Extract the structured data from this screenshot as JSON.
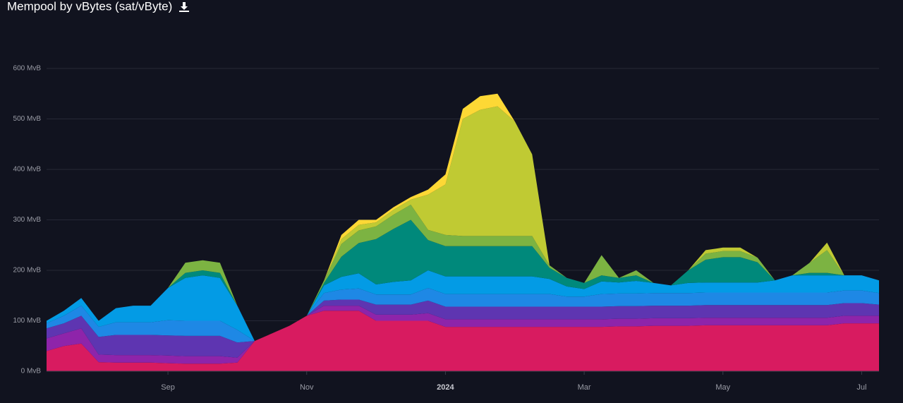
{
  "chart_data": {
    "type": "stacked-area",
    "title": "Mempool by vBytes (sat/vByte)",
    "categories": [
      null,
      null,
      null,
      null,
      null,
      null,
      null,
      "Sep",
      null,
      null,
      null,
      null,
      null,
      null,
      null,
      "Nov",
      null,
      null,
      null,
      null,
      null,
      null,
      null,
      "2024",
      null,
      null,
      null,
      null,
      null,
      null,
      null,
      "Mar",
      null,
      null,
      null,
      null,
      null,
      null,
      null,
      "May",
      null,
      null,
      null,
      null,
      null,
      null,
      null,
      "Jul",
      null
    ],
    "ylim": [
      0,
      600
    ],
    "yticks": [
      {
        "value": 0,
        "label": "0 MvB"
      },
      {
        "value": 100,
        "label": "100 MvB"
      },
      {
        "value": 200,
        "label": "200 MvB"
      },
      {
        "value": 300,
        "label": "300 MvB"
      },
      {
        "value": 400,
        "label": "400 MvB"
      },
      {
        "value": 500,
        "label": "500 MvB"
      },
      {
        "value": 600,
        "label": "600 MvB"
      }
    ],
    "grid": true,
    "series": [
      {
        "color": "#d81b60",
        "values": [
          40,
          50,
          55,
          18,
          17,
          17,
          17,
          16,
          15,
          15,
          15,
          17,
          60,
          75,
          90,
          110,
          120,
          120,
          120,
          100,
          100,
          100,
          100,
          88,
          88,
          88,
          88,
          88,
          88,
          88,
          88,
          88,
          88,
          89,
          89,
          90,
          90,
          90,
          91,
          91,
          91,
          91,
          91,
          91,
          91,
          91,
          95,
          95,
          95
        ]
      },
      {
        "color": "#8e24aa",
        "values": [
          25,
          25,
          30,
          15,
          15,
          15,
          15,
          15,
          15,
          15,
          15,
          10,
          0,
          0,
          0,
          0,
          10,
          10,
          10,
          12,
          12,
          12,
          15,
          15,
          15,
          15,
          15,
          15,
          15,
          15,
          15,
          15,
          15,
          15,
          15,
          15,
          15,
          15,
          15,
          15,
          15,
          15,
          15,
          15,
          15,
          15,
          15,
          15,
          15
        ]
      },
      {
        "color": "#5e35b1",
        "values": [
          20,
          20,
          25,
          35,
          40,
          40,
          40,
          40,
          40,
          40,
          40,
          30,
          0,
          0,
          0,
          0,
          10,
          12,
          12,
          20,
          20,
          20,
          25,
          25,
          25,
          25,
          25,
          25,
          25,
          25,
          25,
          25,
          25,
          25,
          25,
          25,
          25,
          25,
          25,
          25,
          25,
          25,
          25,
          25,
          25,
          25,
          25,
          25,
          22
        ]
      },
      {
        "color": "#1e88e5",
        "values": [
          10,
          15,
          20,
          20,
          25,
          25,
          25,
          30,
          30,
          30,
          30,
          25,
          0,
          0,
          0,
          0,
          15,
          20,
          22,
          20,
          20,
          20,
          25,
          25,
          25,
          25,
          25,
          25,
          25,
          25,
          20,
          20,
          25,
          25,
          25,
          25,
          25,
          25,
          25,
          25,
          25,
          25,
          25,
          25,
          25,
          25,
          25,
          25,
          23
        ]
      },
      {
        "color": "#039be5",
        "values": [
          5,
          10,
          15,
          12,
          28,
          33,
          33,
          64,
          85,
          90,
          85,
          48,
          0,
          0,
          0,
          0,
          15,
          25,
          30,
          20,
          25,
          28,
          35,
          35,
          35,
          35,
          35,
          35,
          35,
          30,
          20,
          15,
          25,
          22,
          25,
          20,
          15,
          20,
          20,
          20,
          20,
          20,
          24,
          34,
          34,
          34,
          30,
          30,
          25
        ]
      },
      {
        "color": "#00897b",
        "values": [
          0,
          0,
          0,
          0,
          0,
          0,
          0,
          0,
          10,
          10,
          10,
          0,
          0,
          0,
          0,
          0,
          5,
          40,
          60,
          90,
          105,
          120,
          60,
          60,
          60,
          60,
          60,
          60,
          60,
          22,
          17,
          12,
          12,
          9,
          11,
          0,
          0,
          25,
          45,
          50,
          50,
          40,
          0,
          0,
          5,
          5,
          0,
          0,
          0
        ]
      },
      {
        "color": "#7cb342",
        "values": [
          0,
          0,
          0,
          0,
          0,
          0,
          0,
          0,
          20,
          20,
          20,
          0,
          0,
          0,
          0,
          0,
          5,
          25,
          25,
          25,
          28,
          30,
          20,
          22,
          20,
          20,
          20,
          20,
          20,
          5,
          0,
          0,
          40,
          0,
          10,
          0,
          0,
          0,
          12,
          12,
          12,
          9,
          0,
          0,
          20,
          45,
          0,
          0,
          0
        ]
      },
      {
        "color": "#c0ca33",
        "values": [
          0,
          0,
          0,
          0,
          0,
          0,
          0,
          0,
          0,
          0,
          0,
          0,
          0,
          0,
          0,
          0,
          0,
          10,
          11,
          8,
          10,
          10,
          70,
          100,
          232,
          250,
          257,
          227,
          162,
          0,
          0,
          0,
          0,
          0,
          0,
          0,
          0,
          0,
          7,
          7,
          7,
          0,
          0,
          0,
          0,
          15,
          0,
          0,
          0
        ]
      },
      {
        "color": "#fdd835",
        "values": [
          0,
          0,
          0,
          0,
          0,
          0,
          0,
          0,
          0,
          0,
          0,
          0,
          0,
          0,
          0,
          0,
          0,
          8,
          10,
          5,
          5,
          5,
          10,
          20,
          20,
          27,
          25,
          0,
          0,
          0,
          0,
          0,
          0,
          0,
          0,
          0,
          0,
          0,
          0,
          0,
          0,
          0,
          0,
          0,
          0,
          0,
          0,
          0,
          0
        ]
      }
    ]
  }
}
